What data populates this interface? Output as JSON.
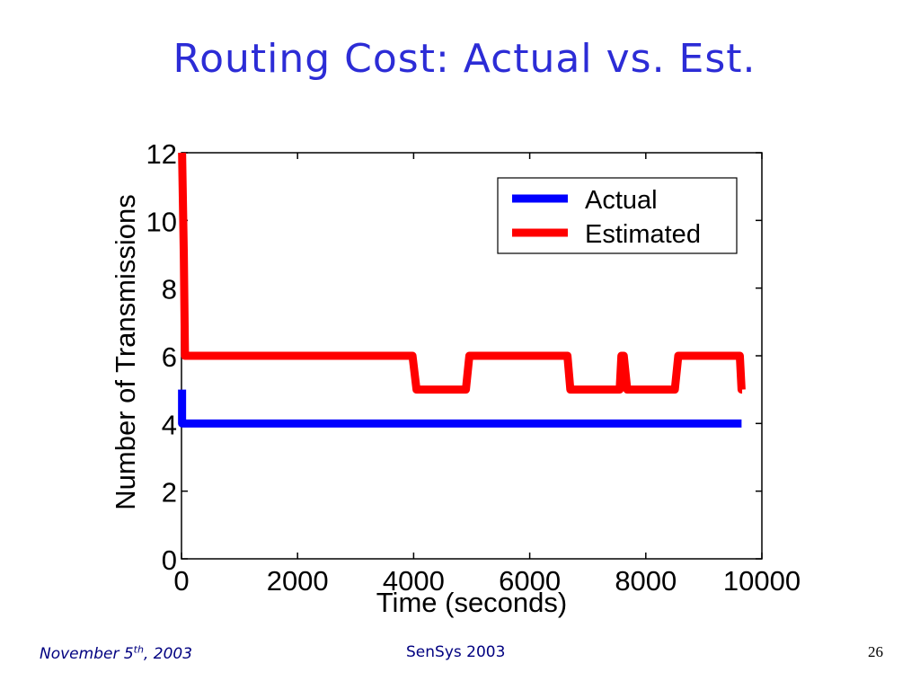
{
  "slide": {
    "title": "Routing Cost: Actual vs. Est.",
    "footer_date_main": "November 5",
    "footer_date_sup": "th",
    "footer_date_year": ", 2003",
    "footer_center": "SenSys 2003",
    "page_number": "26"
  },
  "chart_data": {
    "type": "line",
    "title": "",
    "xlabel": "Time (seconds)",
    "ylabel": "Number of Transmissions",
    "xlim": [
      0,
      10000
    ],
    "ylim": [
      0,
      12
    ],
    "xticks": [
      0,
      2000,
      4000,
      6000,
      8000,
      10000
    ],
    "yticks": [
      0,
      2,
      4,
      6,
      8,
      10,
      12
    ],
    "grid": false,
    "legend_position": "top-right",
    "series": [
      {
        "name": "Actual",
        "color": "#0000ff",
        "x": [
          10,
          10,
          30,
          9650
        ],
        "y": [
          5,
          4,
          4,
          4
        ]
      },
      {
        "name": "Estimated",
        "color": "#ff0000",
        "x": [
          10,
          20,
          40,
          60,
          80,
          100,
          3980,
          4050,
          4900,
          4960,
          6650,
          6700,
          7550,
          7580,
          7620,
          7680,
          8500,
          8560,
          9620,
          9650,
          9660
        ],
        "y": [
          12,
          11,
          9,
          6,
          6,
          6,
          6,
          5,
          5,
          6,
          6,
          5,
          5,
          6,
          6,
          5,
          5,
          6,
          6,
          5,
          5
        ]
      }
    ]
  }
}
